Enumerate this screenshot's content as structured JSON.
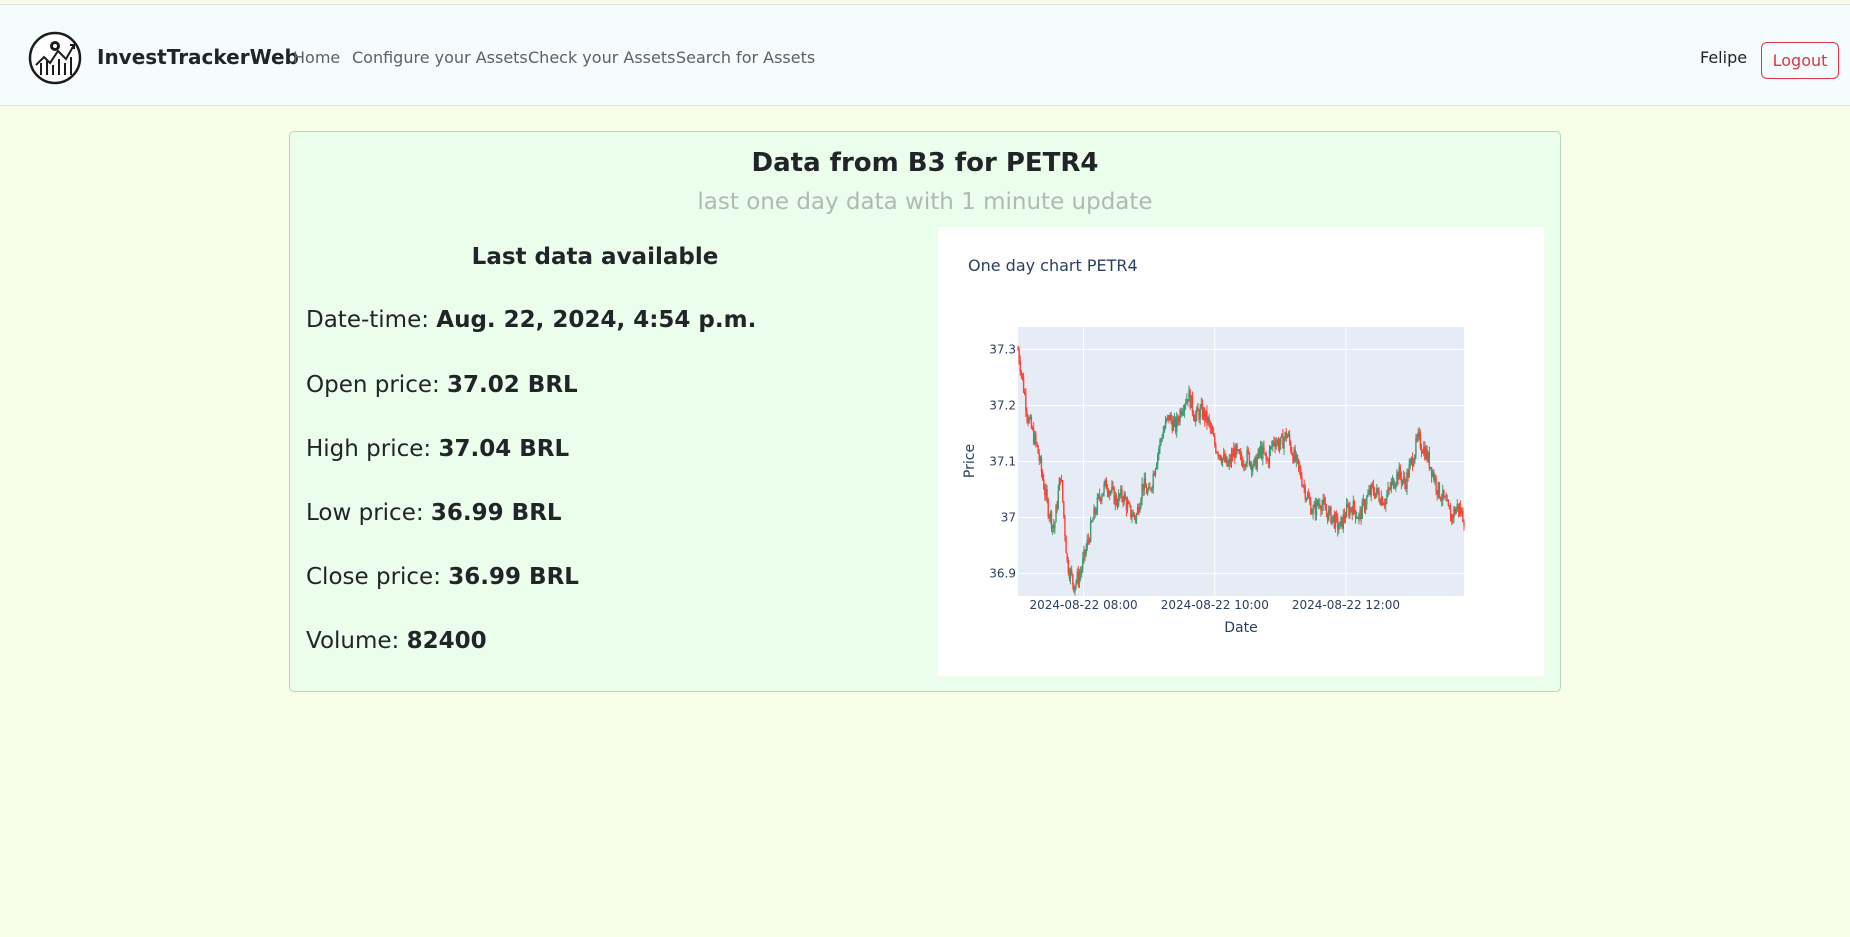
{
  "navbar": {
    "brand": "InvestTrackerWeb",
    "links": [
      "Home",
      "Configure your Assets",
      "Check your Assets",
      "Search for Assets"
    ],
    "user": "Felipe",
    "logout_label": "Logout"
  },
  "card": {
    "title": "Data from B3 for PETR4",
    "subtitle": "last one day data with 1 minute update"
  },
  "info": {
    "heading": "Last data available",
    "rows": [
      {
        "label": "Date-time: ",
        "value": "Aug. 22, 2024, 4:54 p.m."
      },
      {
        "label": "Open price: ",
        "value": "37.02 BRL"
      },
      {
        "label": "High price: ",
        "value": "37.04 BRL"
      },
      {
        "label": "Low price: ",
        "value": "36.99 BRL"
      },
      {
        "label": "Close price: ",
        "value": "36.99 BRL"
      },
      {
        "label": "Volume: ",
        "value": "82400"
      }
    ]
  },
  "chart_data": {
    "type": "candlestick",
    "title": "One day chart PETR4",
    "xlabel": "Date",
    "ylabel": "Price",
    "x_tick_labels": [
      "2024-08-22 08:00",
      "2024-08-22 10:00",
      "2024-08-22 12:00"
    ],
    "y_tick_labels": [
      "36.9",
      "37",
      "37.1",
      "37.2",
      "37.3"
    ],
    "ylim": [
      36.86,
      37.34
    ],
    "xlim_hours": [
      7.0,
      13.8
    ],
    "grid": true,
    "colors": {
      "increasing": "#3d9970",
      "decreasing": "#ff4136",
      "plot_bg": "#e5ecf6"
    },
    "series": [
      {
        "values": [
          [
            7.0,
            37.3
          ],
          [
            7.15,
            37.18
          ],
          [
            7.3,
            37.12
          ],
          [
            7.45,
            37.02
          ],
          [
            7.55,
            36.98
          ],
          [
            7.65,
            37.08
          ],
          [
            7.75,
            36.92
          ],
          [
            7.85,
            36.88
          ],
          [
            7.95,
            36.9
          ],
          [
            8.05,
            36.95
          ],
          [
            8.15,
            37.0
          ],
          [
            8.25,
            37.04
          ],
          [
            8.35,
            37.06
          ],
          [
            8.5,
            37.03
          ],
          [
            8.6,
            37.04
          ],
          [
            8.7,
            37.01
          ],
          [
            8.8,
            37.0
          ],
          [
            8.9,
            37.06
          ],
          [
            9.0,
            37.04
          ],
          [
            9.1,
            37.1
          ],
          [
            9.2,
            37.15
          ],
          [
            9.3,
            37.18
          ],
          [
            9.4,
            37.16
          ],
          [
            9.5,
            37.2
          ],
          [
            9.6,
            37.22
          ],
          [
            9.7,
            37.18
          ],
          [
            9.8,
            37.19
          ],
          [
            9.9,
            37.17
          ],
          [
            10.0,
            37.13
          ],
          [
            10.1,
            37.11
          ],
          [
            10.2,
            37.09
          ],
          [
            10.3,
            37.12
          ],
          [
            10.4,
            37.1
          ],
          [
            10.5,
            37.11
          ],
          [
            10.6,
            37.09
          ],
          [
            10.7,
            37.12
          ],
          [
            10.8,
            37.1
          ],
          [
            10.9,
            37.14
          ],
          [
            11.0,
            37.13
          ],
          [
            11.1,
            37.15
          ],
          [
            11.2,
            37.11
          ],
          [
            11.3,
            37.08
          ],
          [
            11.4,
            37.04
          ],
          [
            11.5,
            37.01
          ],
          [
            11.6,
            37.03
          ],
          [
            11.7,
            37.01
          ],
          [
            11.8,
            37.0
          ],
          [
            11.9,
            36.98
          ],
          [
            12.0,
            37.01
          ],
          [
            12.1,
            37.02
          ],
          [
            12.2,
            37.0
          ],
          [
            12.3,
            37.03
          ],
          [
            12.4,
            37.05
          ],
          [
            12.5,
            37.04
          ],
          [
            12.6,
            37.03
          ],
          [
            12.7,
            37.06
          ],
          [
            12.8,
            37.08
          ],
          [
            12.9,
            37.06
          ],
          [
            13.0,
            37.1
          ],
          [
            13.1,
            37.14
          ],
          [
            13.2,
            37.12
          ],
          [
            13.3,
            37.09
          ],
          [
            13.4,
            37.05
          ],
          [
            13.5,
            37.03
          ],
          [
            13.6,
            37.0
          ],
          [
            13.7,
            37.02
          ],
          [
            13.8,
            37.0
          ]
        ]
      }
    ]
  }
}
